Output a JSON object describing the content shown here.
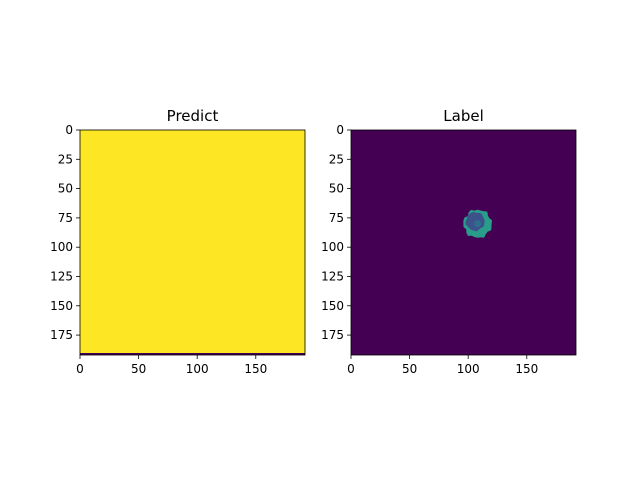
{
  "chart_data": [
    {
      "type": "heatmap",
      "title": "Predict",
      "xticks": [
        0,
        50,
        100,
        150
      ],
      "yticks": [
        0,
        25,
        50,
        75,
        100,
        125,
        150,
        175
      ],
      "xlim": [
        0,
        192
      ],
      "ylim": [
        192,
        0
      ],
      "fill_color": "#fde725",
      "border_row_color": "#440154",
      "description_values": "uniform prediction map"
    },
    {
      "type": "heatmap",
      "title": "Label",
      "xticks": [
        0,
        50,
        100,
        150
      ],
      "yticks": [
        0,
        25,
        50,
        75,
        100,
        125,
        150,
        175
      ],
      "xlim": [
        0,
        192
      ],
      "ylim": [
        192,
        0
      ],
      "background_color": "#440154",
      "outer_region": {
        "color": "#2a9c8a",
        "center": [
          108,
          80
        ],
        "radius": 12
      },
      "inner_region": {
        "color": "#3b528b",
        "center": [
          106,
          78
        ],
        "radius": 8
      },
      "core_region": {
        "color": "#2f6d8e",
        "center": [
          108,
          80
        ],
        "radius": 3
      }
    }
  ],
  "colors": {
    "viridis_low": "#440154",
    "viridis_mid_blue": "#3b528b",
    "viridis_mid_teal": "#21918c",
    "viridis_high": "#fde725"
  }
}
